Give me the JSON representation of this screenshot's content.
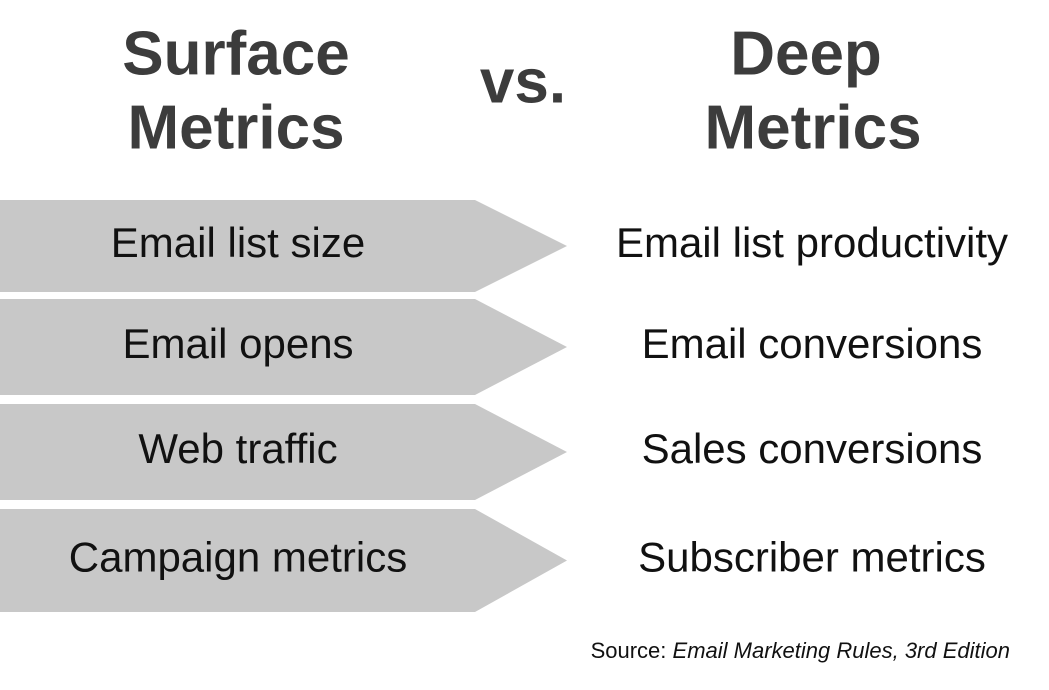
{
  "header": {
    "left": [
      "Surface",
      "Metrics"
    ],
    "middle": "vs.",
    "right": [
      "Deep",
      "Metrics"
    ]
  },
  "rows": [
    {
      "surface": "Email list size",
      "deep": "Email list productivity"
    },
    {
      "surface": "Email opens",
      "deep": "Email conversions"
    },
    {
      "surface": "Web traffic",
      "deep": "Sales conversions"
    },
    {
      "surface": "Campaign metrics",
      "deep": "Subscriber metrics"
    }
  ],
  "source": {
    "label": "Source:",
    "work": "Email Marketing Rules, 3rd Edition"
  }
}
